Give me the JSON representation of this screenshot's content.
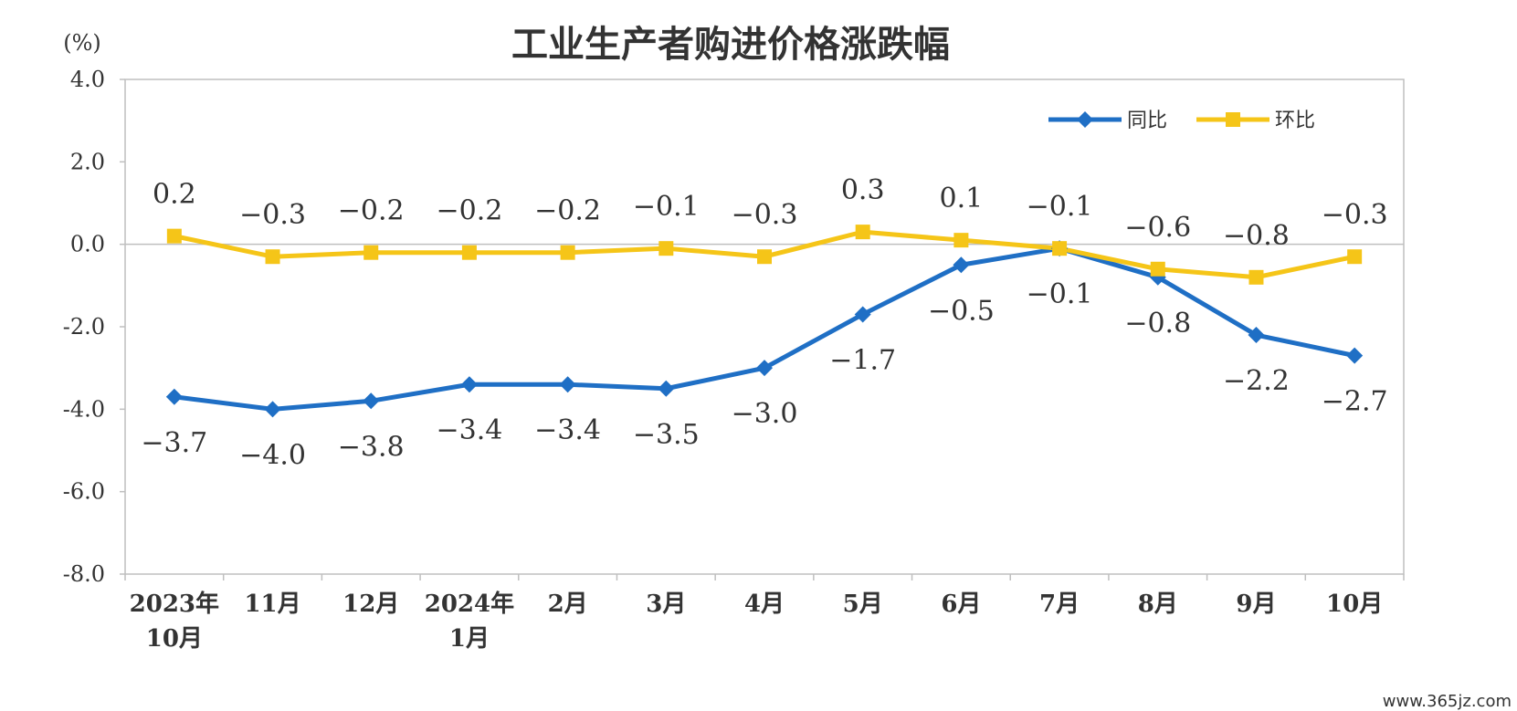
{
  "chart_data": {
    "type": "line",
    "title": "工业生产者购进价格涨跌幅",
    "unit": "(%)",
    "ylim": [
      -8.0,
      4.0
    ],
    "yticks": [
      "4.0",
      "2.0",
      "0.0",
      "-2.0",
      "-4.0",
      "-6.0",
      "-8.0"
    ],
    "categories": [
      [
        "2023年",
        "10月"
      ],
      [
        "11月"
      ],
      [
        "12月"
      ],
      [
        "2024年",
        "1月"
      ],
      [
        "2月"
      ],
      [
        "3月"
      ],
      [
        "4月"
      ],
      [
        "5月"
      ],
      [
        "6月"
      ],
      [
        "7月"
      ],
      [
        "8月"
      ],
      [
        "9月"
      ],
      [
        "10月"
      ]
    ],
    "series": [
      {
        "name": "同比",
        "color": "#1f6fc5",
        "marker": "diamond",
        "values": [
          -3.7,
          -4.0,
          -3.8,
          -3.4,
          -3.4,
          -3.5,
          -3.0,
          -1.7,
          -0.5,
          -0.1,
          -0.8,
          -2.2,
          -2.7
        ],
        "labels": [
          "-3.7",
          "-4.0",
          "-3.8",
          "-3.4",
          "-3.4",
          "-3.5",
          "-3.0",
          "-1.7",
          "-0.5",
          "-0.1",
          "-0.8",
          "-2.2",
          "-2.7"
        ],
        "label_position": "below"
      },
      {
        "name": "环比",
        "color": "#f5c518",
        "marker": "square",
        "values": [
          0.2,
          -0.3,
          -0.2,
          -0.2,
          -0.2,
          -0.1,
          -0.3,
          0.3,
          0.1,
          -0.1,
          -0.6,
          -0.8,
          -0.3
        ],
        "labels": [
          "0.2",
          "-0.3",
          "-0.2",
          "-0.2",
          "-0.2",
          "-0.1",
          "-0.3",
          "0.3",
          "0.1",
          "-0.1",
          "-0.6",
          "-0.8",
          "-0.3"
        ],
        "label_position": "above"
      }
    ],
    "legend": "top-right",
    "grid": false
  },
  "watermark": "www.365jz.com"
}
